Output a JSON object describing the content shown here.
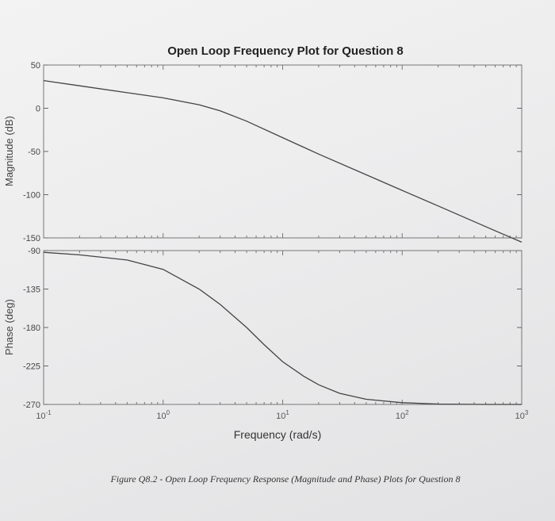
{
  "chart_data": {
    "type": "line",
    "title": "Open Loop Frequency Plot for Question 8",
    "xlabel": "Frequency  (rad/s)",
    "caption": "Figure Q8.2 - Open Loop Frequency Response (Magnitude and Phase) Plots for Question 8",
    "xscale": "log",
    "xlim": [
      0.1,
      1000
    ],
    "x_tick_values": [
      0.1,
      1,
      10,
      100,
      1000
    ],
    "x_tick_labels": [
      {
        "base": "10",
        "exp": "-1"
      },
      {
        "base": "10",
        "exp": "0"
      },
      {
        "base": "10",
        "exp": "1"
      },
      {
        "base": "10",
        "exp": "2"
      },
      {
        "base": "10",
        "exp": "3"
      }
    ],
    "grid": false,
    "subplots": [
      {
        "ylabel": "Magnitude (dB)",
        "ylim": [
          -150,
          50
        ],
        "yticks": [
          50,
          0,
          -50,
          -100,
          -150
        ],
        "x": [
          0.1,
          0.2,
          0.5,
          1,
          2,
          3,
          5,
          10,
          20,
          50,
          100,
          200,
          500,
          1000
        ],
        "y": [
          32,
          26,
          18,
          12,
          4,
          -3,
          -15,
          -34,
          -53,
          -77,
          -95,
          -113,
          -137,
          -155
        ]
      },
      {
        "ylabel": "Phase (deg)",
        "ylim": [
          -270,
          -90
        ],
        "yticks": [
          -90,
          -135,
          -180,
          -225,
          -270
        ],
        "x": [
          0.1,
          0.2,
          0.5,
          1,
          2,
          3,
          5,
          7,
          10,
          15,
          20,
          30,
          50,
          100,
          200,
          500,
          1000
        ],
        "y": [
          -92,
          -95,
          -101,
          -112,
          -135,
          -153,
          -180,
          -200,
          -220,
          -237,
          -247,
          -257,
          -264,
          -268,
          -269.5,
          -270,
          -270
        ]
      }
    ]
  }
}
